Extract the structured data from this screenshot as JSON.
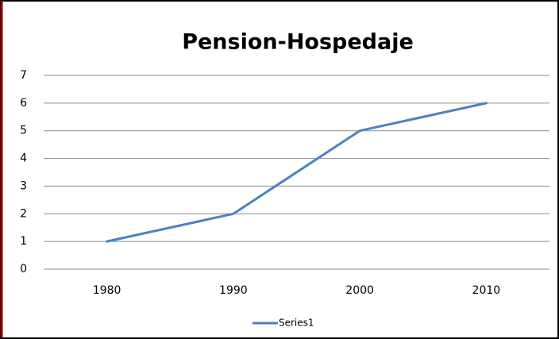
{
  "chart_data": {
    "type": "line",
    "title": "Pension-Hospedaje",
    "categories": [
      "1980",
      "1990",
      "2000",
      "2010"
    ],
    "series": [
      {
        "name": "Series1",
        "color": "#4f81bd",
        "values": [
          1,
          2,
          5,
          6
        ]
      }
    ],
    "ylim": [
      0,
      7
    ],
    "yticks": [
      0,
      1,
      2,
      3,
      4,
      5,
      6,
      7
    ],
    "grid": true,
    "legend": "bottom"
  }
}
